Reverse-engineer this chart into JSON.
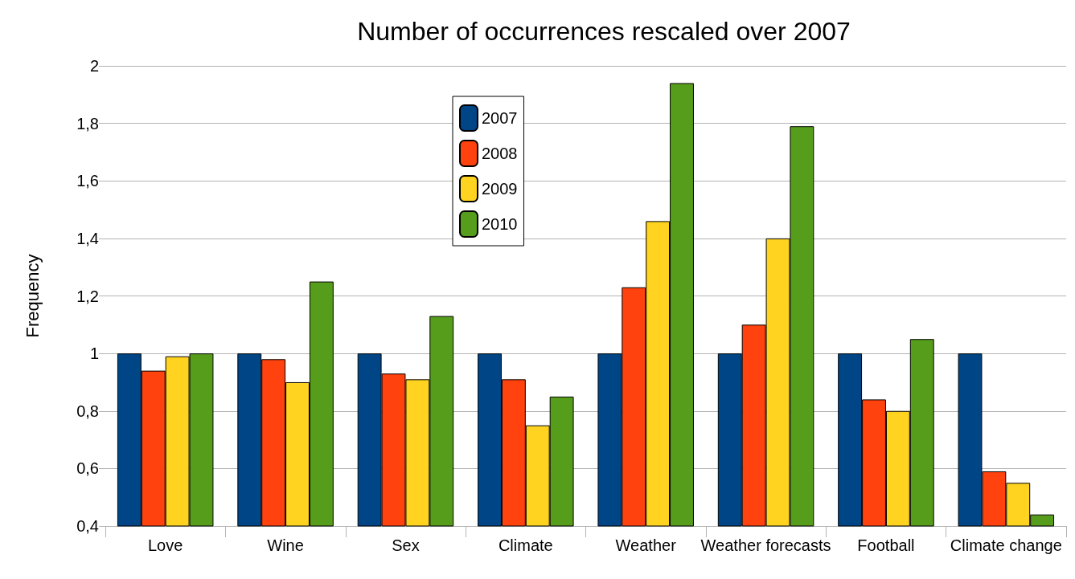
{
  "chart_data": {
    "type": "bar",
    "title": "Number of occurrences rescaled over 2007",
    "ylabel": "Frequency",
    "categories": [
      "Love",
      "Wine",
      "Sex",
      "Climate",
      "Weather",
      "Weather forecasts",
      "Football",
      "Climate change"
    ],
    "series": [
      {
        "name": "2007",
        "color": "#004586",
        "values": [
          1,
          1,
          1,
          1,
          1,
          1,
          1,
          1
        ]
      },
      {
        "name": "2008",
        "color": "#ff420e",
        "values": [
          0.94,
          0.98,
          0.93,
          0.91,
          1.23,
          1.1,
          0.84,
          0.59
        ]
      },
      {
        "name": "2009",
        "color": "#ffd320",
        "values": [
          0.99,
          0.9,
          0.91,
          0.75,
          1.46,
          1.4,
          0.8,
          0.55
        ]
      },
      {
        "name": "2010",
        "color": "#579d1c",
        "values": [
          1,
          1.25,
          1.13,
          0.85,
          1.94,
          1.79,
          1.05,
          0.44
        ]
      }
    ],
    "ylim": [
      0.4,
      2
    ],
    "yticks": [
      {
        "value": 0.4,
        "label": "0,4"
      },
      {
        "value": 0.6,
        "label": "0,6"
      },
      {
        "value": 0.8,
        "label": "0,8"
      },
      1,
      {
        "value": 1.2,
        "label": "1,2"
      },
      {
        "value": 1.4,
        "label": "1,4"
      },
      {
        "value": 1.6,
        "label": "1,6"
      },
      {
        "value": 1.8,
        "label": "1,8"
      },
      2
    ],
    "grid": "y",
    "legend": "top"
  }
}
